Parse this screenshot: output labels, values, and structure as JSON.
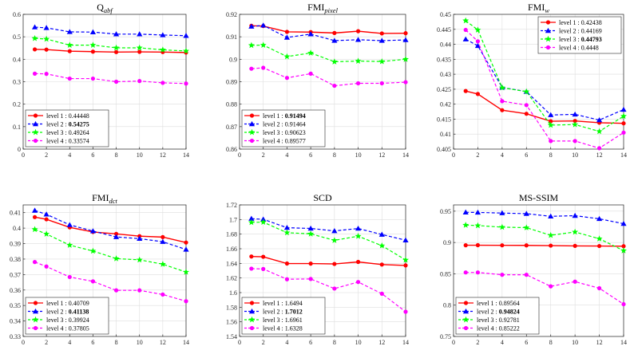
{
  "colors": {
    "series": [
      "#ff0000",
      "#0000ff",
      "#00ff00",
      "#ff00ff"
    ],
    "grid": "#dedede",
    "axis": "#262626"
  },
  "chart_data": [
    {
      "type": "line",
      "title": "Q",
      "title_sub": "abf",
      "x": [
        1,
        2,
        4,
        6,
        8,
        10,
        12,
        14
      ],
      "xticks": [
        0,
        2,
        4,
        6,
        8,
        10,
        12,
        14
      ],
      "xlim": [
        0,
        14
      ],
      "ylim": [
        0,
        0.6
      ],
      "yticks": [
        0,
        0.1,
        0.2,
        0.3,
        0.4,
        0.5,
        0.6
      ],
      "ytick_labels": [
        "0",
        "0.1",
        "0.2",
        "0.3",
        "0.4",
        "0.5",
        "0.6"
      ],
      "legend_position": "bottom-left",
      "series": [
        {
          "name": "level 1",
          "legend_value": "0.44448",
          "bold": false,
          "marker": "circle",
          "line": "solid",
          "values": [
            0.444,
            0.443,
            0.436,
            0.434,
            0.432,
            0.433,
            0.432,
            0.43
          ]
        },
        {
          "name": "level 2",
          "legend_value": "0.54275",
          "bold": true,
          "marker": "triangle",
          "line": "dashed",
          "values": [
            0.543,
            0.54,
            0.522,
            0.521,
            0.512,
            0.512,
            0.508,
            0.505
          ]
        },
        {
          "name": "level 3",
          "legend_value": "0.49264",
          "bold": false,
          "marker": "star",
          "line": "dashed",
          "values": [
            0.493,
            0.49,
            0.463,
            0.463,
            0.451,
            0.451,
            0.442,
            0.437
          ]
        },
        {
          "name": "level 4",
          "legend_value": "0.33574",
          "bold": false,
          "marker": "circle",
          "line": "dashed",
          "values": [
            0.336,
            0.335,
            0.314,
            0.314,
            0.3,
            0.303,
            0.295,
            0.292
          ]
        }
      ]
    },
    {
      "type": "line",
      "title": "FMI",
      "title_sub": "pixel",
      "x": [
        1,
        2,
        4,
        6,
        8,
        10,
        12,
        14
      ],
      "xticks": [
        0,
        2,
        4,
        6,
        8,
        10,
        12,
        14
      ],
      "xlim": [
        0,
        14
      ],
      "ylim": [
        0.86,
        0.92
      ],
      "yticks": [
        0.86,
        0.87,
        0.88,
        0.89,
        0.9,
        0.91,
        0.92
      ],
      "ytick_labels": [
        "0.86",
        "0.87",
        "0.88",
        "0.89",
        "0.9",
        "0.91",
        "0.92"
      ],
      "legend_position": "bottom-left",
      "series": [
        {
          "name": "level 1",
          "legend_value": "0.91494",
          "bold": true,
          "marker": "circle",
          "line": "solid",
          "values": [
            0.9149,
            0.9148,
            0.9122,
            0.9121,
            0.9117,
            0.9125,
            0.9115,
            0.9116
          ]
        },
        {
          "name": "level 2",
          "legend_value": "0.91464",
          "bold": false,
          "marker": "triangle",
          "line": "dashed",
          "values": [
            0.9146,
            0.9151,
            0.9097,
            0.9112,
            0.9083,
            0.9087,
            0.9083,
            0.9086
          ]
        },
        {
          "name": "level 3",
          "legend_value": "0.90623",
          "bold": false,
          "marker": "star",
          "line": "dashed",
          "values": [
            0.9062,
            0.9063,
            0.9012,
            0.9028,
            0.8989,
            0.8992,
            0.899,
            0.9
          ]
        },
        {
          "name": "level 4",
          "legend_value": "0.89577",
          "bold": false,
          "marker": "circle",
          "line": "dashed",
          "values": [
            0.8958,
            0.8962,
            0.8917,
            0.8936,
            0.8882,
            0.8893,
            0.8893,
            0.8898
          ]
        }
      ]
    },
    {
      "type": "line",
      "title": "FMI",
      "title_sub": "w",
      "x": [
        1,
        2,
        4,
        6,
        8,
        10,
        12,
        14
      ],
      "xticks": [
        0,
        2,
        4,
        6,
        8,
        10,
        12,
        14
      ],
      "xlim": [
        0,
        14
      ],
      "ylim": [
        0.405,
        0.45
      ],
      "yticks": [
        0.405,
        0.41,
        0.415,
        0.42,
        0.425,
        0.43,
        0.435,
        0.44,
        0.445,
        0.45
      ],
      "ytick_labels": [
        "0.405",
        "0.41",
        "0.415",
        "0.42",
        "0.425",
        "0.43",
        "0.435",
        "0.44",
        "0.445",
        "0.45"
      ],
      "legend_position": "top-right",
      "series": [
        {
          "name": "level 1",
          "legend_value": "0.42438",
          "bold": false,
          "marker": "circle",
          "line": "solid",
          "values": [
            0.4244,
            0.4234,
            0.418,
            0.4168,
            0.4143,
            0.4144,
            0.4138,
            0.4136
          ]
        },
        {
          "name": "level 2",
          "legend_value": "0.44169",
          "bold": false,
          "marker": "triangle",
          "line": "dashed",
          "values": [
            0.4417,
            0.4395,
            0.4256,
            0.4242,
            0.4164,
            0.4166,
            0.4147,
            0.4182
          ]
        },
        {
          "name": "level 3",
          "legend_value": "0.44793",
          "bold": true,
          "marker": "star",
          "line": "dashed",
          "values": [
            0.4479,
            0.4448,
            0.4255,
            0.4242,
            0.413,
            0.4132,
            0.4109,
            0.416
          ]
        },
        {
          "name": "level 4",
          "legend_value": "0.4448",
          "bold": false,
          "marker": "circle",
          "line": "dashed",
          "values": [
            0.4448,
            0.441,
            0.421,
            0.4197,
            0.4077,
            0.4077,
            0.4053,
            0.4105
          ]
        }
      ]
    },
    {
      "type": "line",
      "title": "FMI",
      "title_sub": "dct",
      "x": [
        1,
        2,
        4,
        6,
        8,
        10,
        12,
        14
      ],
      "xticks": [
        0,
        2,
        4,
        6,
        8,
        10,
        12,
        14
      ],
      "xlim": [
        0,
        14
      ],
      "ylim": [
        0.33,
        0.415
      ],
      "yticks": [
        0.33,
        0.34,
        0.35,
        0.36,
        0.37,
        0.38,
        0.39,
        0.4,
        0.41
      ],
      "ytick_labels": [
        "0.33",
        "0.34",
        "0.35",
        "0.36",
        "0.37",
        "0.38",
        "0.39",
        "0.4",
        "0.41"
      ],
      "legend_position": "bottom-left",
      "series": [
        {
          "name": "level 1",
          "legend_value": "0.40709",
          "bold": false,
          "marker": "circle",
          "line": "solid",
          "values": [
            0.4071,
            0.4057,
            0.4005,
            0.3975,
            0.3963,
            0.3948,
            0.3942,
            0.3907
          ]
        },
        {
          "name": "level 2",
          "legend_value": "0.41138",
          "bold": true,
          "marker": "triangle",
          "line": "dashed",
          "values": [
            0.4114,
            0.4089,
            0.4021,
            0.3981,
            0.3943,
            0.3932,
            0.3912,
            0.3862
          ]
        },
        {
          "name": "level 3",
          "legend_value": "0.39924",
          "bold": false,
          "marker": "star",
          "line": "dashed",
          "values": [
            0.3992,
            0.3962,
            0.389,
            0.3852,
            0.3803,
            0.3795,
            0.3767,
            0.3716
          ]
        },
        {
          "name": "level 4",
          "legend_value": "0.37805",
          "bold": false,
          "marker": "circle",
          "line": "dashed",
          "values": [
            0.3781,
            0.3752,
            0.3684,
            0.3656,
            0.3598,
            0.3598,
            0.3571,
            0.3528
          ]
        }
      ]
    },
    {
      "type": "line",
      "title": "SCD",
      "title_sub": "",
      "x": [
        1,
        2,
        4,
        6,
        8,
        10,
        12,
        14
      ],
      "xticks": [
        0,
        2,
        4,
        6,
        8,
        10,
        12,
        14
      ],
      "xlim": [
        0,
        14
      ],
      "ylim": [
        1.54,
        1.72
      ],
      "yticks": [
        1.54,
        1.56,
        1.58,
        1.6,
        1.62,
        1.64,
        1.66,
        1.68,
        1.7,
        1.72
      ],
      "ytick_labels": [
        "1.54",
        "1.56",
        "1.58",
        "1.6",
        "1.62",
        "1.64",
        "1.66",
        "1.68",
        "1.7",
        "1.72"
      ],
      "legend_position": "bottom-left",
      "series": [
        {
          "name": "level 1",
          "legend_value": "1.6494",
          "bold": false,
          "marker": "circle",
          "line": "solid",
          "values": [
            1.6494,
            1.649,
            1.6398,
            1.6397,
            1.6392,
            1.642,
            1.6384,
            1.6372
          ]
        },
        {
          "name": "level 2",
          "legend_value": "1.7012",
          "bold": true,
          "marker": "triangle",
          "line": "dashed",
          "values": [
            1.7012,
            1.7003,
            1.6888,
            1.6878,
            1.6844,
            1.6877,
            1.6795,
            1.6717
          ]
        },
        {
          "name": "level 3",
          "legend_value": "1.6961",
          "bold": false,
          "marker": "star",
          "line": "dashed",
          "values": [
            1.6961,
            1.6964,
            1.682,
            1.6804,
            1.6715,
            1.6772,
            1.6642,
            1.6447
          ]
        },
        {
          "name": "level 4",
          "legend_value": "1.6328",
          "bold": false,
          "marker": "circle",
          "line": "dashed",
          "values": [
            1.6328,
            1.6323,
            1.6183,
            1.6187,
            1.6055,
            1.6145,
            1.5985,
            1.5738
          ]
        }
      ]
    },
    {
      "type": "line",
      "title": "MS-SSIM",
      "title_sub": "",
      "x": [
        1,
        2,
        4,
        6,
        8,
        10,
        12,
        14
      ],
      "xticks": [
        0,
        2,
        4,
        6,
        8,
        10,
        12,
        14
      ],
      "xlim": [
        0,
        14
      ],
      "ylim": [
        0.75,
        0.96
      ],
      "yticks": [
        0.75,
        0.8,
        0.85,
        0.9,
        0.95
      ],
      "ytick_labels": [
        "0.75",
        "0.8",
        "0.85",
        "0.9",
        "0.95"
      ],
      "legend_position": "bottom-left",
      "series": [
        {
          "name": "level 1",
          "legend_value": "0.89564",
          "bold": false,
          "marker": "circle",
          "line": "solid",
          "values": [
            0.8956,
            0.8957,
            0.8955,
            0.8954,
            0.895,
            0.8946,
            0.8944,
            0.8941
          ]
        },
        {
          "name": "level 2",
          "legend_value": "0.94824",
          "bold": true,
          "marker": "triangle",
          "line": "dashed",
          "values": [
            0.9482,
            0.948,
            0.947,
            0.946,
            0.9418,
            0.9428,
            0.9378,
            0.93
          ]
        },
        {
          "name": "level 3",
          "legend_value": "0.92781",
          "bold": false,
          "marker": "star",
          "line": "dashed",
          "values": [
            0.9278,
            0.927,
            0.9245,
            0.9237,
            0.9115,
            0.9168,
            0.906,
            0.887
          ]
        },
        {
          "name": "level 4",
          "legend_value": "0.85222",
          "bold": false,
          "marker": "circle",
          "line": "dashed",
          "values": [
            0.8522,
            0.8522,
            0.8485,
            0.8485,
            0.83,
            0.8375,
            0.827,
            0.8015
          ]
        }
      ]
    }
  ]
}
